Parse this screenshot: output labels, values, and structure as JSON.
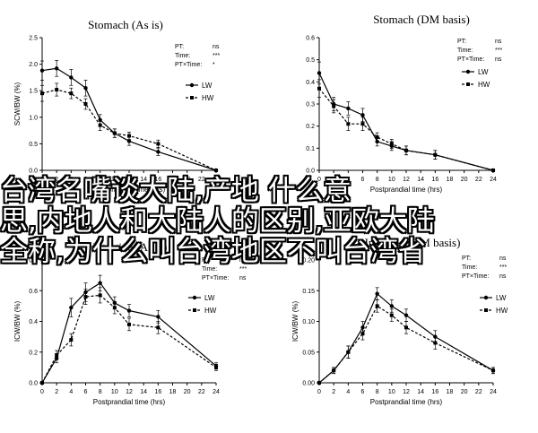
{
  "overlay": {
    "line1": "台湾名嘴谈大陆,产地   什么意",
    "line2": "思,内地人和大陆人的区别,亚欧大陆",
    "line3": " 全称,为什么叫台湾地区不叫台湾省"
  },
  "chart_data": [
    {
      "type": "line",
      "title": "Stomach (As is)",
      "xlabel": "Postprandial time (hrs)",
      "ylabel": "SCW/BW (%)",
      "xlim": [
        0,
        24
      ],
      "ylim": [
        0,
        2.5
      ],
      "xticks": [
        "0",
        "2",
        "4",
        "6",
        "8",
        "10",
        "12",
        "14",
        "16",
        "18",
        "20",
        "22",
        "24"
      ],
      "yticks": [
        "0.0",
        "0.5",
        "1.0",
        "1.5",
        "2.0",
        "2.5"
      ],
      "stats": [
        {
          "label": "PT:",
          "value": "ns"
        },
        {
          "label": "Time:",
          "value": "***"
        },
        {
          "label": "PT×Time:",
          "value": "*"
        }
      ],
      "legend_position": "right",
      "series": [
        {
          "name": "LW",
          "style": "solid",
          "x": [
            0,
            2,
            4,
            6,
            8,
            10,
            12,
            16,
            24
          ],
          "y": [
            1.88,
            1.92,
            1.75,
            1.55,
            0.95,
            0.7,
            0.55,
            0.35,
            0.0
          ],
          "err": [
            0.18,
            0.15,
            0.15,
            0.15,
            0.1,
            0.08,
            0.08,
            0.07,
            0.0
          ]
        },
        {
          "name": "HW",
          "style": "dashed",
          "x": [
            0,
            2,
            4,
            6,
            8,
            10,
            12,
            16,
            24
          ],
          "y": [
            1.45,
            1.52,
            1.45,
            1.25,
            0.85,
            0.7,
            0.65,
            0.5,
            0.0
          ],
          "err": [
            0.15,
            0.12,
            0.1,
            0.1,
            0.1,
            0.08,
            0.07,
            0.07,
            0.0
          ]
        }
      ]
    },
    {
      "type": "line",
      "title": "Stomach (DM basis)",
      "xlabel": "Postprandial time (hrs)",
      "ylabel": "",
      "xlim": [
        0,
        24
      ],
      "ylim": [
        0,
        0.6
      ],
      "xticks": [
        "0",
        "2",
        "4",
        "6",
        "8",
        "10",
        "12",
        "14",
        "16",
        "18",
        "20",
        "22",
        "24"
      ],
      "yticks": [
        "0.0",
        "0.1",
        "0.2",
        "0.3",
        "0.4",
        "0.5",
        "0.6"
      ],
      "stats": [
        {
          "label": "PT:",
          "value": "ns"
        },
        {
          "label": "Time:",
          "value": "***"
        },
        {
          "label": "PT×Time:",
          "value": "ns"
        }
      ],
      "legend_position": "right",
      "series": [
        {
          "name": "LW",
          "style": "solid",
          "x": [
            0,
            2,
            4,
            6,
            8,
            10,
            12,
            16,
            24
          ],
          "y": [
            0.44,
            0.3,
            0.28,
            0.25,
            0.13,
            0.11,
            0.09,
            0.07,
            0.0
          ],
          "err": [
            0.05,
            0.03,
            0.03,
            0.03,
            0.02,
            0.02,
            0.02,
            0.02,
            0.0
          ]
        },
        {
          "name": "HW",
          "style": "dashed",
          "x": [
            0,
            2,
            4,
            6,
            8,
            10,
            12,
            16,
            24
          ],
          "y": [
            0.37,
            0.29,
            0.21,
            0.21,
            0.15,
            0.12,
            0.09,
            0.07,
            0.0
          ],
          "err": [
            0.04,
            0.03,
            0.03,
            0.03,
            0.02,
            0.02,
            0.02,
            0.02,
            0.0
          ]
        }
      ]
    },
    {
      "type": "line",
      "title": "Intestine (As is)",
      "xlabel": "Postprandial time (hrs)",
      "ylabel": "ICW/BW (%)",
      "xlim": [
        0,
        24
      ],
      "ylim": [
        0,
        0.8
      ],
      "xticks": [
        "0",
        "2",
        "4",
        "6",
        "8",
        "10",
        "12",
        "14",
        "16",
        "18",
        "20",
        "22",
        "24"
      ],
      "yticks": [
        "0.0",
        "0.2",
        "0.4",
        "0.6",
        "0.8"
      ],
      "stats": [
        {
          "label": "PT:",
          "value": "ns"
        },
        {
          "label": "Time:",
          "value": "***"
        },
        {
          "label": "PT×Time:",
          "value": "ns"
        }
      ],
      "legend_position": "right",
      "series": [
        {
          "name": "LW",
          "style": "solid",
          "x": [
            0,
            2,
            4,
            6,
            8,
            10,
            12,
            16,
            24
          ],
          "y": [
            0.0,
            0.16,
            0.49,
            0.59,
            0.65,
            0.52,
            0.47,
            0.43,
            0.11
          ],
          "err": [
            0.0,
            0.03,
            0.06,
            0.06,
            0.05,
            0.04,
            0.04,
            0.04,
            0.02
          ]
        },
        {
          "name": "HW",
          "style": "dashed",
          "x": [
            0,
            2,
            4,
            6,
            8,
            10,
            12,
            16,
            24
          ],
          "y": [
            0.0,
            0.18,
            0.28,
            0.56,
            0.57,
            0.49,
            0.38,
            0.36,
            0.1
          ],
          "err": [
            0.0,
            0.03,
            0.04,
            0.05,
            0.05,
            0.04,
            0.04,
            0.04,
            0.02
          ]
        }
      ]
    },
    {
      "type": "line",
      "title": "Intestine (DM basis)",
      "xlabel": "Postprandial time (hrs)",
      "ylabel": "ICW/BW (%)",
      "xlim": [
        0,
        24
      ],
      "ylim": [
        0,
        0.2
      ],
      "xticks": [
        "0",
        "2",
        "4",
        "6",
        "8",
        "10",
        "12",
        "14",
        "16",
        "18",
        "20",
        "22",
        "24"
      ],
      "yticks": [
        "0.00",
        "0.05",
        "0.10",
        "0.15",
        "0.20"
      ],
      "stats": [
        {
          "label": "PT:",
          "value": "ns"
        },
        {
          "label": "Time:",
          "value": "***"
        },
        {
          "label": "PT×Time:",
          "value": "ns"
        }
      ],
      "legend_position": "right",
      "series": [
        {
          "name": "LW",
          "style": "solid",
          "x": [
            0,
            2,
            4,
            6,
            8,
            10,
            12,
            16,
            24
          ],
          "y": [
            0.0,
            0.02,
            0.05,
            0.09,
            0.145,
            0.125,
            0.11,
            0.075,
            0.02
          ],
          "err": [
            0.0,
            0.005,
            0.01,
            0.01,
            0.01,
            0.01,
            0.01,
            0.01,
            0.005
          ]
        },
        {
          "name": "HW",
          "style": "dashed",
          "x": [
            0,
            2,
            4,
            6,
            8,
            10,
            12,
            16,
            24
          ],
          "y": [
            0.0,
            0.02,
            0.05,
            0.08,
            0.125,
            0.11,
            0.09,
            0.065,
            0.02
          ],
          "err": [
            0.0,
            0.005,
            0.01,
            0.01,
            0.01,
            0.01,
            0.01,
            0.01,
            0.005
          ]
        }
      ]
    }
  ]
}
